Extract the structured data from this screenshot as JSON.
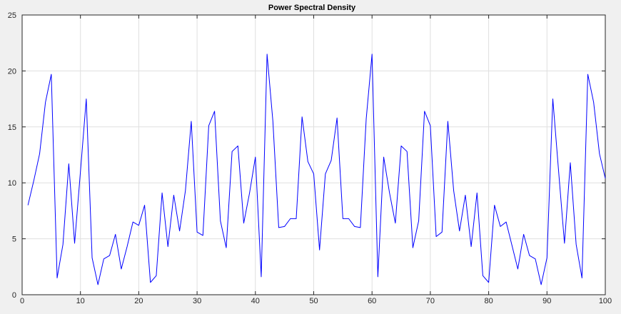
{
  "chart_data": {
    "type": "line",
    "title": "Power Spectral Density",
    "xlabel": "",
    "ylabel": "",
    "xlim": [
      0,
      100
    ],
    "ylim": [
      0,
      25
    ],
    "xticks": [
      0,
      10,
      20,
      30,
      40,
      50,
      60,
      70,
      80,
      90,
      100
    ],
    "yticks": [
      0,
      5,
      10,
      15,
      20,
      25
    ],
    "grid": true,
    "colors": {
      "line": "#0000ff",
      "grid": "#dfdfdf",
      "axes": "#262626",
      "background": "#ffffff",
      "figure": "#f0f0f0"
    },
    "series": [
      {
        "x": [
          1,
          2,
          3,
          4,
          5,
          6,
          7,
          8,
          9,
          10,
          11,
          12,
          13,
          14,
          15,
          16,
          17,
          18,
          19,
          20,
          21,
          22,
          23,
          24,
          25,
          26,
          27,
          28,
          29,
          30,
          31,
          32,
          33,
          34,
          35,
          36,
          37,
          38,
          39,
          40,
          41,
          42,
          43,
          44,
          45,
          46,
          47,
          48,
          49,
          50,
          51,
          52,
          53,
          54,
          55,
          56,
          57,
          58,
          59,
          60,
          61,
          62,
          63,
          64,
          65,
          66,
          67,
          68,
          69,
          70,
          71,
          72,
          73,
          74,
          75,
          76,
          77,
          78,
          79,
          80,
          81,
          82,
          83,
          84,
          85,
          86,
          87,
          88,
          89,
          90,
          91,
          92,
          93,
          94,
          95,
          96,
          97,
          98,
          99,
          100
        ],
        "values": [
          8.0,
          10.2,
          12.6,
          17.2,
          19.7,
          1.5,
          4.5,
          11.7,
          4.6,
          11.0,
          17.5,
          3.3,
          0.9,
          3.2,
          3.5,
          5.4,
          2.3,
          4.3,
          6.5,
          6.2,
          8.0,
          1.1,
          1.7,
          9.1,
          4.3,
          8.9,
          5.7,
          9.3,
          15.5,
          5.6,
          5.3,
          15.1,
          16.4,
          6.6,
          4.2,
          12.8,
          13.3,
          6.4,
          9.1,
          12.3,
          1.6,
          21.5,
          15.5,
          6.0,
          6.1,
          6.8,
          6.8,
          15.9,
          11.9,
          10.8,
          4.0,
          10.8,
          12.0,
          15.8,
          6.8,
          6.8,
          6.1,
          6.0,
          15.7,
          21.5,
          1.6,
          12.3,
          9.1,
          6.4,
          13.3,
          12.8,
          4.2,
          6.6,
          16.4,
          15.1,
          5.2,
          5.6,
          15.5,
          9.3,
          5.7,
          8.9,
          4.3,
          9.1,
          1.7,
          1.1,
          8.0,
          6.1,
          6.5,
          4.4,
          2.3,
          5.4,
          3.5,
          3.2,
          0.9,
          3.3,
          17.5,
          11.0,
          4.6,
          11.8,
          4.5,
          1.5,
          19.7,
          17.2,
          12.6,
          10.4
        ]
      }
    ]
  }
}
